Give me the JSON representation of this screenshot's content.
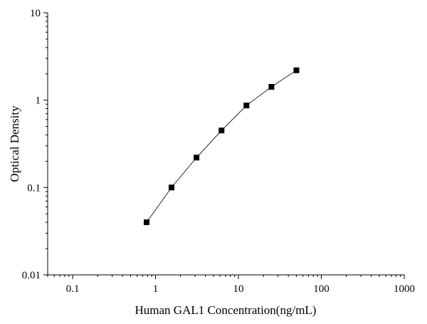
{
  "chart_data": {
    "type": "line",
    "title": "",
    "xlabel": "Human GAL1 Concentration(ng/mL)",
    "ylabel": "Optical Density",
    "x_scale": "log",
    "y_scale": "log",
    "xlim": [
      0.05,
      1000
    ],
    "ylim": [
      0.01,
      10
    ],
    "x_ticks": [
      "0.1",
      "1",
      "10",
      "100",
      "1000"
    ],
    "y_ticks": [
      "0.01",
      "0.1",
      "1",
      "10"
    ],
    "grid": false,
    "legend": "none",
    "marker": "square",
    "line_color": "#000000",
    "series": [
      {
        "x": [
          0.78,
          1.56,
          3.12,
          6.25,
          12.5,
          25,
          50
        ],
        "y": [
          0.04,
          0.1,
          0.22,
          0.45,
          0.87,
          1.42,
          2.2
        ]
      }
    ]
  }
}
